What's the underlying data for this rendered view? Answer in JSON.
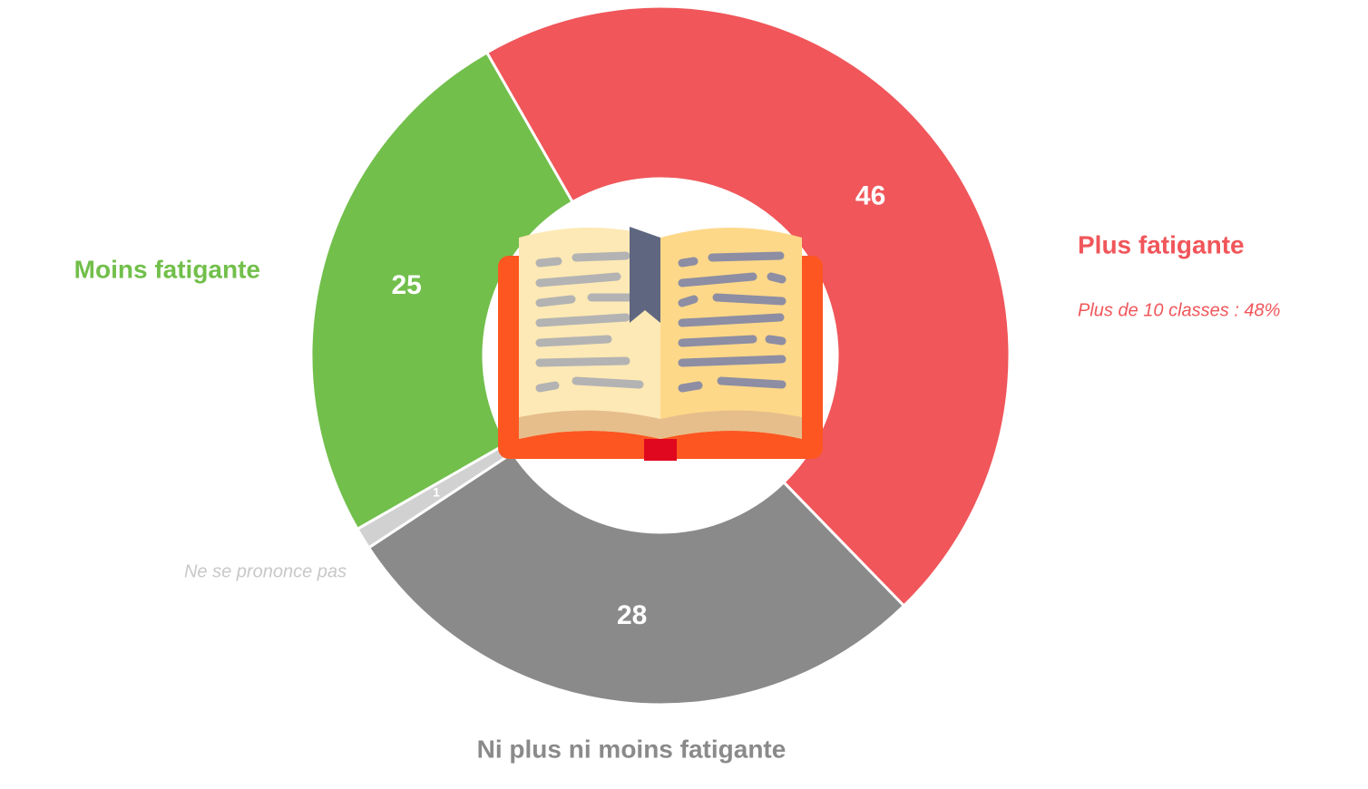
{
  "chart_data": {
    "type": "donut",
    "categories": [
      "Plus fatigante",
      "Ni plus ni moins fatigante",
      "Ne se prononce pas",
      "Moins fatigante"
    ],
    "values": [
      46,
      28,
      1,
      25
    ],
    "colors": [
      "#f0565a",
      "#8a8a8a",
      "#d2d1d2",
      "#72bf4b"
    ],
    "annotation": "Plus de 10 classes : 48%"
  }
}
